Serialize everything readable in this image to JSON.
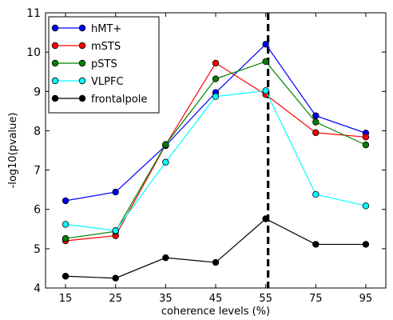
{
  "chart_data": {
    "type": "line",
    "xlabel": "coherence levels (%)",
    "ylabel": "-log10(pvalue)",
    "categories": [
      "15",
      "25",
      "35",
      "45",
      "55",
      "75",
      "95"
    ],
    "ylim": [
      4,
      11
    ],
    "yticks": [
      4,
      5,
      6,
      7,
      8,
      9,
      10,
      11
    ],
    "grid": false,
    "legend_position": "top-left",
    "marker_category": "55",
    "marker_style": "dashed vertical line",
    "series": [
      {
        "name": "hMT+",
        "color": "#0000ff",
        "values": [
          6.22,
          6.44,
          7.62,
          8.97,
          10.2,
          8.38,
          7.94
        ]
      },
      {
        "name": "mSTS",
        "color": "#ff0000",
        "values": [
          5.2,
          5.33,
          7.64,
          9.72,
          8.92,
          7.95,
          7.84
        ]
      },
      {
        "name": "pSTS",
        "color": "#008000",
        "values": [
          5.26,
          5.44,
          7.65,
          9.32,
          9.76,
          8.22,
          7.64
        ]
      },
      {
        "name": "VLPFC",
        "color": "#00ffff",
        "values": [
          5.62,
          5.46,
          7.2,
          8.87,
          9.02,
          6.38,
          6.09
        ]
      },
      {
        "name": "frontalpole",
        "color": "#000000",
        "values": [
          4.3,
          4.25,
          4.77,
          4.65,
          5.76,
          5.11,
          5.11
        ]
      }
    ]
  }
}
